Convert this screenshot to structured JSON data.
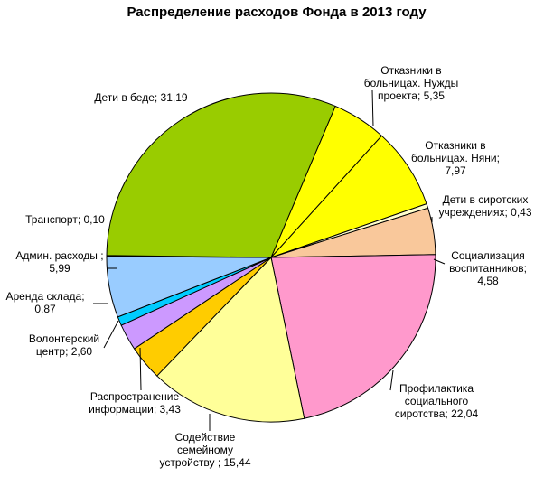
{
  "chart_data": {
    "type": "pie",
    "title": "Распределение расходов Фонда в 2013 году",
    "slices": [
      {
        "label": "Отказники в больницах. Нужды проекта; 5,35",
        "value": 5.35,
        "color": "#ffff00"
      },
      {
        "label": "Отказники в больницах. Няни; 7,97",
        "value": 7.97,
        "color": "#ffff00"
      },
      {
        "label": "Дети в сиротских учреждениях; 0,43",
        "value": 0.43,
        "color": "#ffffcc"
      },
      {
        "label": "Социализация воспитанников; 4,58",
        "value": 4.58,
        "color": "#f9c89b"
      },
      {
        "label": "Профилактика социального сиротства; 22,04",
        "value": 22.04,
        "color": "#ff99cc"
      },
      {
        "label": "Содействие семейному устройству ; 15,44",
        "value": 15.44,
        "color": "#ffff99"
      },
      {
        "label": "Распространение информации; 3,43",
        "value": 3.43,
        "color": "#ffcc00"
      },
      {
        "label": "Волонтерский центр; 2,60",
        "value": 2.6,
        "color": "#cc99ff"
      },
      {
        "label": "Аренда склада; 0,87",
        "value": 0.87,
        "color": "#00ccff"
      },
      {
        "label": "Админ. расходы ; 5,99",
        "value": 5.99,
        "color": "#99ccff"
      },
      {
        "label": "Транспорт; 0,10",
        "value": 0.1,
        "color": "#1a1a1a"
      },
      {
        "label": "Дети в беде; 31,19",
        "value": 31.19,
        "color": "#99cc00"
      }
    ]
  }
}
